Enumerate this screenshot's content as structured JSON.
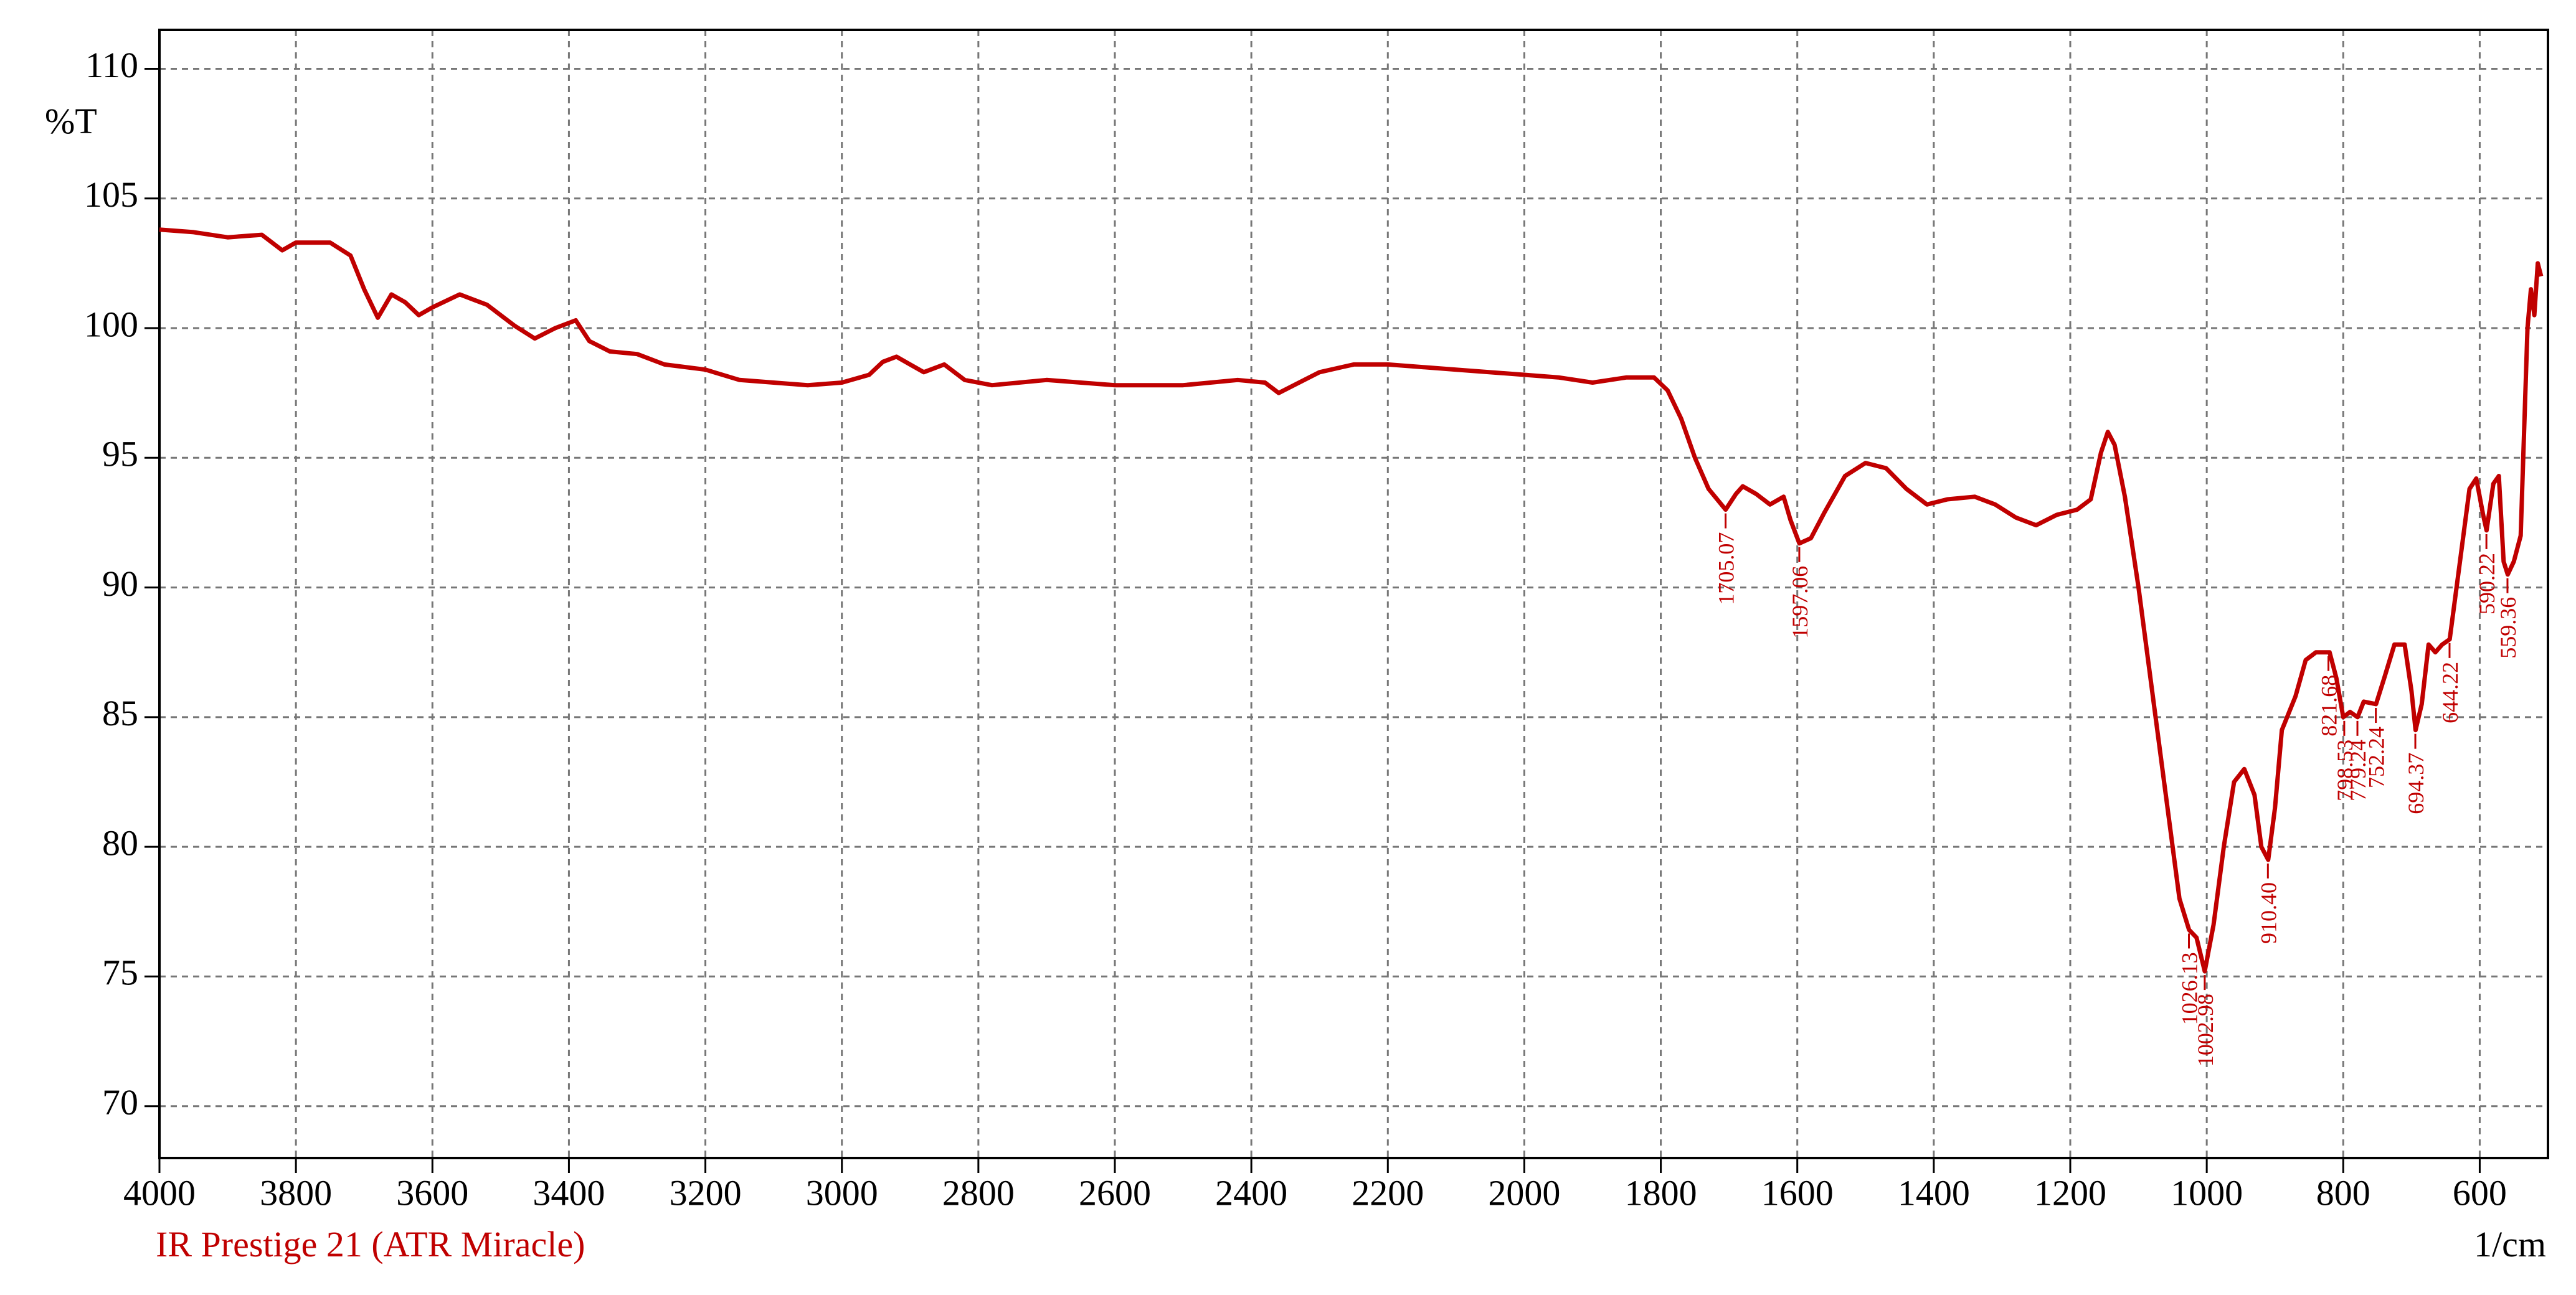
{
  "chart_data": {
    "type": "line",
    "ylabel": "%T",
    "xlabel": "1/cm",
    "caption": "IR Prestige 21 (ATR Miracle)",
    "color": "#c00000",
    "grid": true,
    "xlim": [
      4000,
      500
    ],
    "ylim": [
      68,
      111.5
    ],
    "xticks": [
      4000,
      3800,
      3600,
      3400,
      3200,
      3000,
      2800,
      2600,
      2400,
      2200,
      2000,
      1800,
      1600,
      1400,
      1200,
      1000,
      800,
      600
    ],
    "yticks": [
      70,
      75,
      80,
      85,
      90,
      95,
      100,
      105,
      110
    ],
    "x": [
      4000,
      3950,
      3900,
      3850,
      3820,
      3800,
      3750,
      3720,
      3700,
      3680,
      3660,
      3640,
      3620,
      3600,
      3560,
      3520,
      3480,
      3450,
      3420,
      3390,
      3370,
      3340,
      3300,
      3260,
      3200,
      3150,
      3100,
      3050,
      3000,
      2960,
      2940,
      2920,
      2900,
      2880,
      2850,
      2820,
      2780,
      2700,
      2600,
      2500,
      2420,
      2380,
      2360,
      2330,
      2300,
      2250,
      2200,
      2100,
      2000,
      1950,
      1900,
      1850,
      1810,
      1790,
      1770,
      1750,
      1730,
      1705,
      1690,
      1680,
      1660,
      1640,
      1620,
      1610,
      1597,
      1580,
      1560,
      1530,
      1500,
      1470,
      1440,
      1410,
      1380,
      1340,
      1310,
      1280,
      1250,
      1220,
      1190,
      1170,
      1155,
      1145,
      1135,
      1120,
      1100,
      1080,
      1060,
      1040,
      1026,
      1015,
      1003,
      990,
      975,
      960,
      945,
      930,
      920,
      910,
      900,
      890,
      870,
      855,
      840,
      820,
      810,
      800,
      790,
      779,
      770,
      752,
      740,
      725,
      710,
      700,
      694,
      685,
      675,
      665,
      655,
      644,
      630,
      615,
      605,
      595,
      590,
      580,
      572,
      565,
      559,
      550,
      540,
      530,
      525,
      520,
      515,
      510
    ],
    "values": [
      103.8,
      103.7,
      103.5,
      103.6,
      103.0,
      103.3,
      103.3,
      102.8,
      101.5,
      100.4,
      101.3,
      101.0,
      100.5,
      100.8,
      101.3,
      100.9,
      100.1,
      99.6,
      100.0,
      100.3,
      99.5,
      99.1,
      99.0,
      98.6,
      98.4,
      98.0,
      97.9,
      97.8,
      97.9,
      98.2,
      98.7,
      98.9,
      98.6,
      98.3,
      98.6,
      98.0,
      97.8,
      98.0,
      97.8,
      97.8,
      98.0,
      97.9,
      97.5,
      97.9,
      98.3,
      98.6,
      98.6,
      98.4,
      98.2,
      98.1,
      97.9,
      98.1,
      98.1,
      97.6,
      96.5,
      95.0,
      93.8,
      93.0,
      93.6,
      93.9,
      93.6,
      93.2,
      93.5,
      92.6,
      91.7,
      91.9,
      92.9,
      94.3,
      94.8,
      94.6,
      93.8,
      93.2,
      93.4,
      93.5,
      93.2,
      92.7,
      92.4,
      92.8,
      93.0,
      93.4,
      95.2,
      96.0,
      95.5,
      93.5,
      90.0,
      86.0,
      82.0,
      78.0,
      76.8,
      76.5,
      75.2,
      77.0,
      80.0,
      82.5,
      83.0,
      82.0,
      80.0,
      79.5,
      81.5,
      84.5,
      85.8,
      87.2,
      87.5,
      87.5,
      86.5,
      85.0,
      85.2,
      85.0,
      85.6,
      85.5,
      86.5,
      87.8,
      87.8,
      86.0,
      84.5,
      85.5,
      87.8,
      87.5,
      87.8,
      88.0,
      90.8,
      93.8,
      94.2,
      92.8,
      92.2,
      94.0,
      94.3,
      91.0,
      90.5,
      91.0,
      92.0,
      100.0,
      101.5,
      100.5,
      102.5,
      102.0
    ],
    "peaks": [
      {
        "label": "1705.07",
        "x": 1705.07,
        "y": 93.0
      },
      {
        "label": "1597.06",
        "x": 1597.06,
        "y": 91.7
      },
      {
        "label": "1026.13",
        "x": 1026.13,
        "y": 76.8
      },
      {
        "label": "1002.98",
        "x": 1002.98,
        "y": 75.2
      },
      {
        "label": "910.40",
        "x": 910.4,
        "y": 79.5
      },
      {
        "label": "821.68",
        "x": 821.68,
        "y": 87.5
      },
      {
        "label": "798.53",
        "x": 798.53,
        "y": 85.0
      },
      {
        "label": "779.24",
        "x": 779.24,
        "y": 85.0
      },
      {
        "label": "752.24",
        "x": 752.24,
        "y": 85.5
      },
      {
        "label": "694.37",
        "x": 694.37,
        "y": 84.5
      },
      {
        "label": "644.22",
        "x": 644.22,
        "y": 88.0
      },
      {
        "label": "590.22",
        "x": 590.22,
        "y": 92.2
      },
      {
        "label": "559.36",
        "x": 559.36,
        "y": 90.5
      }
    ]
  }
}
